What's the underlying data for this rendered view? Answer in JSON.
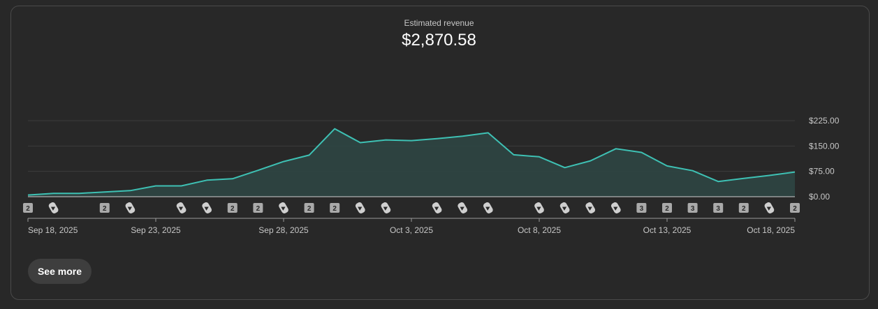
{
  "header": {
    "metric_label": "Estimated revenue",
    "metric_value": "$2,870.58"
  },
  "actions": {
    "see_more_label": "See more"
  },
  "colors": {
    "line": "#3ec1b4",
    "area": "#2e4542",
    "grid": "#3c3c3c",
    "axis": "#9a9a9a",
    "marker_bg": "#aaaaaa",
    "marker_text": "#282828",
    "label": "#c7c7c7"
  },
  "chart_data": {
    "type": "area",
    "title": "Estimated revenue",
    "x": [
      "Sep 18",
      "Sep 19",
      "Sep 20",
      "Sep 21",
      "Sep 22",
      "Sep 23",
      "Sep 24",
      "Sep 25",
      "Sep 26",
      "Sep 27",
      "Sep 28",
      "Sep 29",
      "Sep 30",
      "Oct 1",
      "Oct 2",
      "Oct 3",
      "Oct 4",
      "Oct 5",
      "Oct 6",
      "Oct 7",
      "Oct 8",
      "Oct 9",
      "Oct 10",
      "Oct 11",
      "Oct 12",
      "Oct 13",
      "Oct 14",
      "Oct 15",
      "Oct 16",
      "Oct 17",
      "Oct 18"
    ],
    "series": [
      {
        "name": "Estimated revenue",
        "values": [
          5,
          10,
          10,
          14,
          18,
          32,
          32,
          49,
          53,
          78,
          104,
          123,
          201,
          160,
          168,
          166,
          172,
          179,
          189,
          124,
          118,
          86,
          106,
          142,
          131,
          91,
          77,
          45,
          54,
          63,
          73
        ]
      }
    ],
    "y_ticks": [
      "$0.00",
      "$75.00",
      "$150.00",
      "$225.00"
    ],
    "y_tick_values": [
      0,
      75,
      150,
      225
    ],
    "ylim": [
      0,
      225
    ],
    "x_tick_labels": [
      {
        "index": 0,
        "label": "Sep 18, 2025"
      },
      {
        "index": 5,
        "label": "Sep 23, 2025"
      },
      {
        "index": 10,
        "label": "Sep 28, 2025"
      },
      {
        "index": 15,
        "label": "Oct 3, 2025"
      },
      {
        "index": 20,
        "label": "Oct 8, 2025"
      },
      {
        "index": 25,
        "label": "Oct 13, 2025"
      },
      {
        "index": 30,
        "label": "Oct 18, 2025"
      }
    ],
    "markers": [
      {
        "index": 0,
        "type": "count",
        "label": "2"
      },
      {
        "index": 1,
        "type": "shorts"
      },
      {
        "index": 3,
        "type": "count",
        "label": "2"
      },
      {
        "index": 4,
        "type": "shorts"
      },
      {
        "index": 6,
        "type": "shorts"
      },
      {
        "index": 7,
        "type": "shorts"
      },
      {
        "index": 8,
        "type": "count",
        "label": "2"
      },
      {
        "index": 9,
        "type": "count",
        "label": "2"
      },
      {
        "index": 10,
        "type": "shorts"
      },
      {
        "index": 11,
        "type": "count",
        "label": "2"
      },
      {
        "index": 12,
        "type": "count",
        "label": "2"
      },
      {
        "index": 13,
        "type": "shorts"
      },
      {
        "index": 14,
        "type": "shorts"
      },
      {
        "index": 16,
        "type": "shorts"
      },
      {
        "index": 17,
        "type": "shorts"
      },
      {
        "index": 18,
        "type": "shorts"
      },
      {
        "index": 20,
        "type": "shorts"
      },
      {
        "index": 21,
        "type": "shorts"
      },
      {
        "index": 22,
        "type": "shorts"
      },
      {
        "index": 23,
        "type": "shorts"
      },
      {
        "index": 24,
        "type": "count",
        "label": "3"
      },
      {
        "index": 25,
        "type": "count",
        "label": "2"
      },
      {
        "index": 26,
        "type": "count",
        "label": "3"
      },
      {
        "index": 27,
        "type": "count",
        "label": "3"
      },
      {
        "index": 28,
        "type": "count",
        "label": "2"
      },
      {
        "index": 29,
        "type": "shorts"
      },
      {
        "index": 30,
        "type": "count",
        "label": "2"
      }
    ],
    "grid": true,
    "legend": "none"
  }
}
